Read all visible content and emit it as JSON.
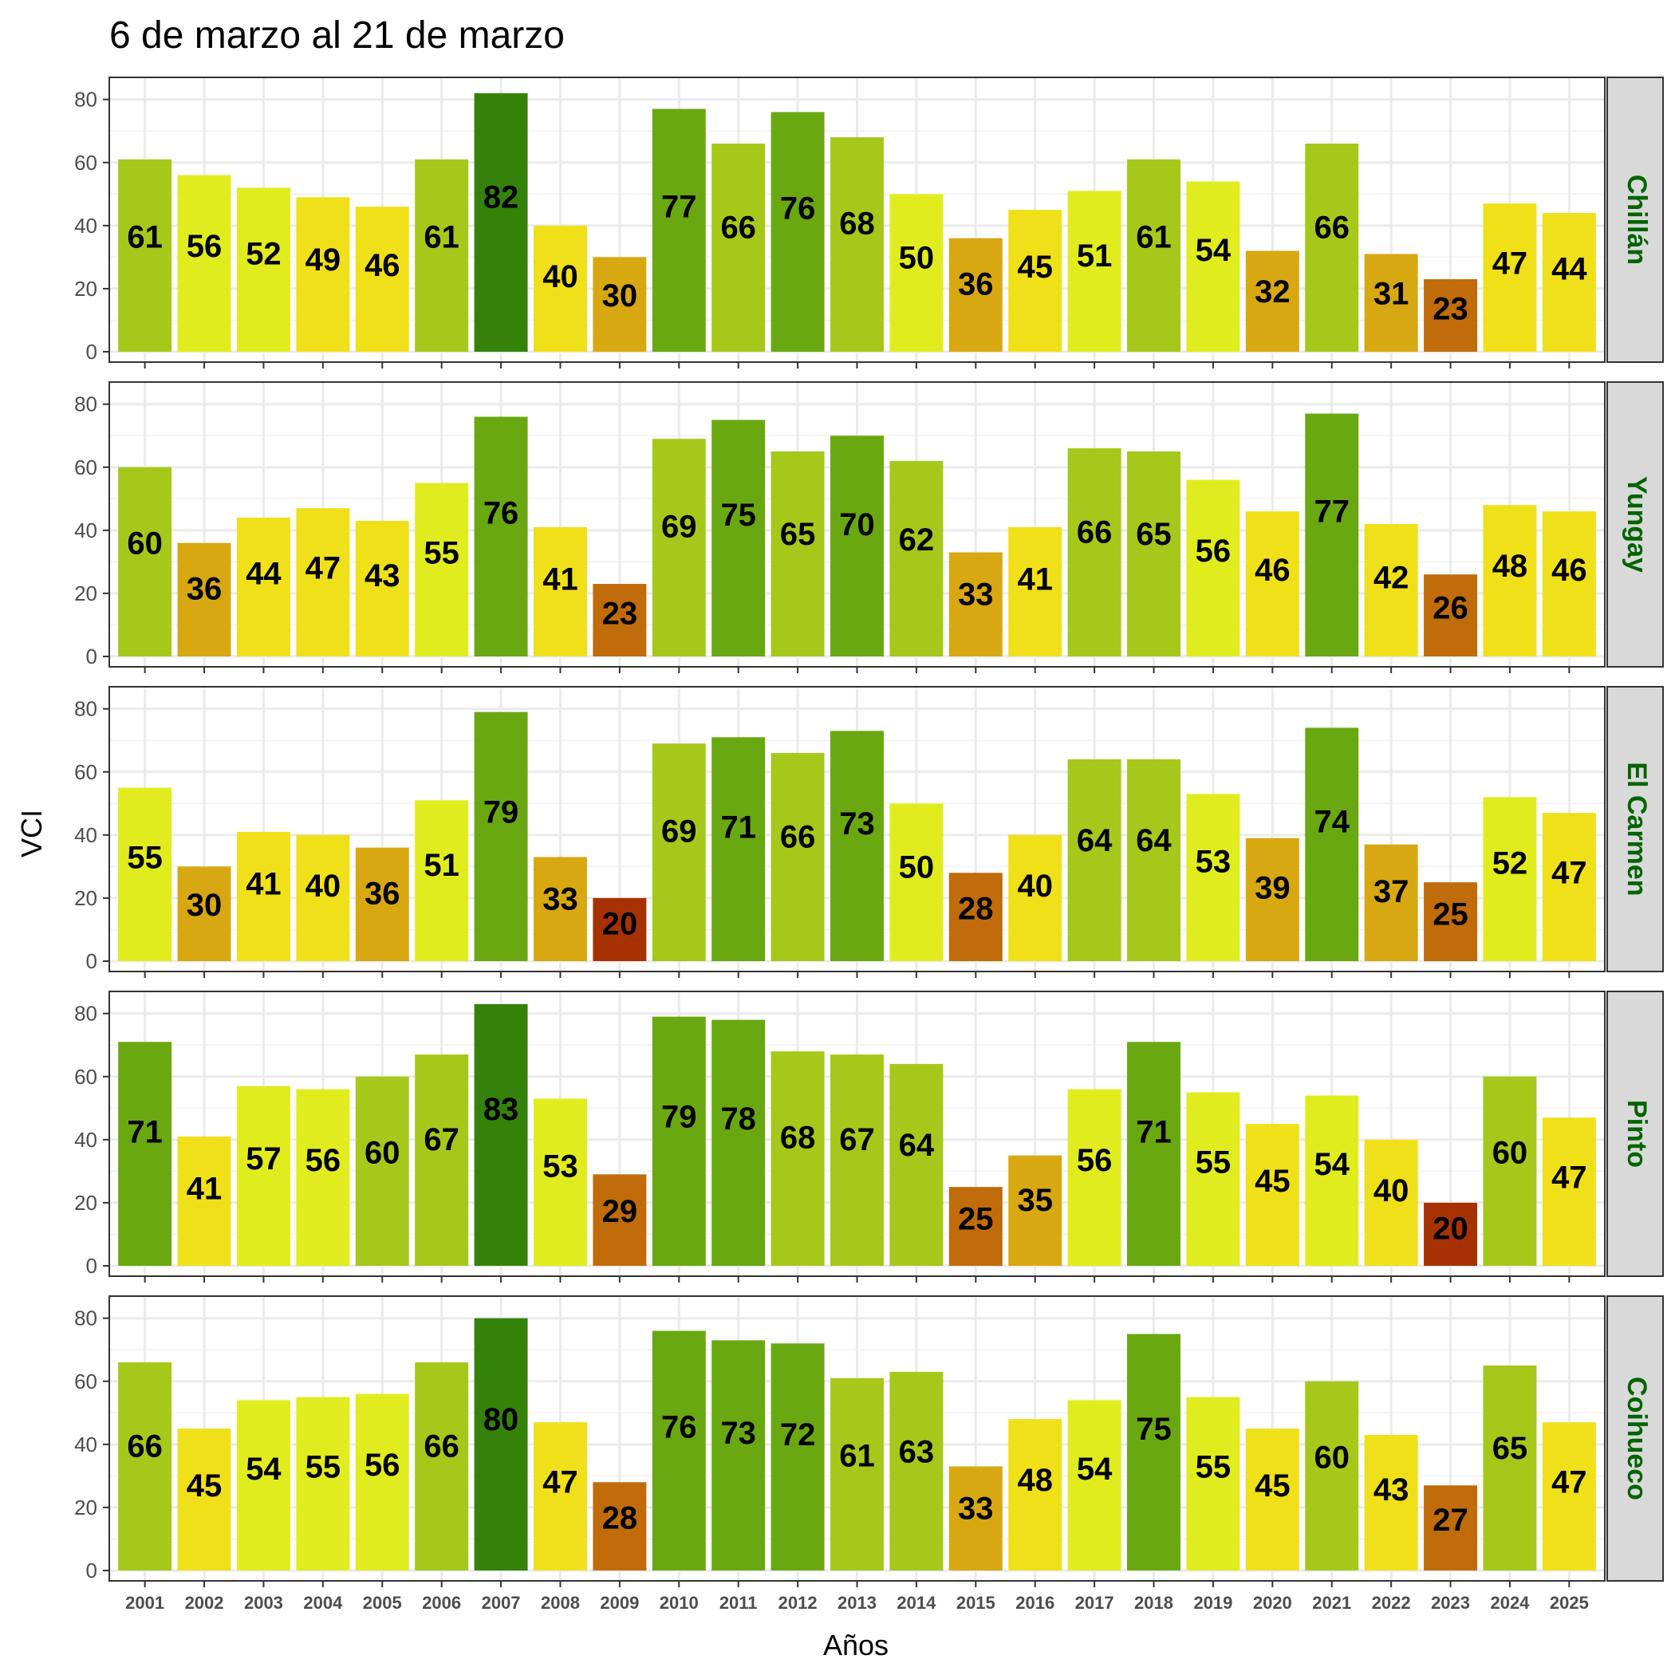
{
  "chart_data": {
    "type": "bar",
    "title": "6 de marzo al 21 de marzo",
    "xlabel": "Años",
    "ylabel": "VCI",
    "ylim": [
      0,
      87
    ],
    "yticks": [
      "0",
      "20",
      "40",
      "60",
      "80"
    ],
    "grid": true,
    "categories": [
      "2001",
      "2002",
      "2003",
      "2004",
      "2005",
      "2006",
      "2007",
      "2008",
      "2009",
      "2010",
      "2011",
      "2012",
      "2013",
      "2014",
      "2015",
      "2016",
      "2017",
      "2018",
      "2019",
      "2020",
      "2021",
      "2022",
      "2023",
      "2024",
      "2025"
    ],
    "series": [
      {
        "name": "Chillán",
        "values": [
          61,
          56,
          52,
          49,
          46,
          61,
          82,
          40,
          30,
          77,
          66,
          76,
          68,
          50,
          36,
          45,
          51,
          61,
          54,
          32,
          66,
          31,
          23,
          47,
          44
        ]
      },
      {
        "name": "Yungay",
        "values": [
          60,
          36,
          44,
          47,
          43,
          55,
          76,
          41,
          23,
          69,
          75,
          65,
          70,
          62,
          33,
          41,
          66,
          65,
          56,
          46,
          77,
          42,
          26,
          48,
          46
        ]
      },
      {
        "name": "El Carmen",
        "values": [
          55,
          30,
          41,
          40,
          36,
          51,
          79,
          33,
          20,
          69,
          71,
          66,
          73,
          50,
          28,
          40,
          64,
          64,
          53,
          39,
          74,
          37,
          25,
          52,
          47
        ]
      },
      {
        "name": "Pinto",
        "values": [
          71,
          41,
          57,
          56,
          60,
          67,
          83,
          53,
          29,
          79,
          78,
          68,
          67,
          64,
          25,
          35,
          56,
          71,
          55,
          45,
          54,
          40,
          20,
          60,
          47
        ]
      },
      {
        "name": "Coihueco",
        "values": [
          66,
          45,
          54,
          55,
          56,
          66,
          80,
          47,
          28,
          76,
          73,
          72,
          61,
          63,
          33,
          48,
          54,
          75,
          55,
          45,
          60,
          43,
          27,
          65,
          47
        ]
      }
    ],
    "color_scale": [
      {
        "min": 80,
        "color": "#35820b"
      },
      {
        "min": 70,
        "color": "#6aa812"
      },
      {
        "min": 60,
        "color": "#a6c81a"
      },
      {
        "min": 50,
        "color": "#e1ec1f"
      },
      {
        "min": 40,
        "color": "#f0e01a"
      },
      {
        "min": 30,
        "color": "#d8a812"
      },
      {
        "min": 21,
        "color": "#c06c0a"
      },
      {
        "min": 0,
        "color": "#a63203"
      }
    ],
    "strip_label_color": "#006400"
  }
}
